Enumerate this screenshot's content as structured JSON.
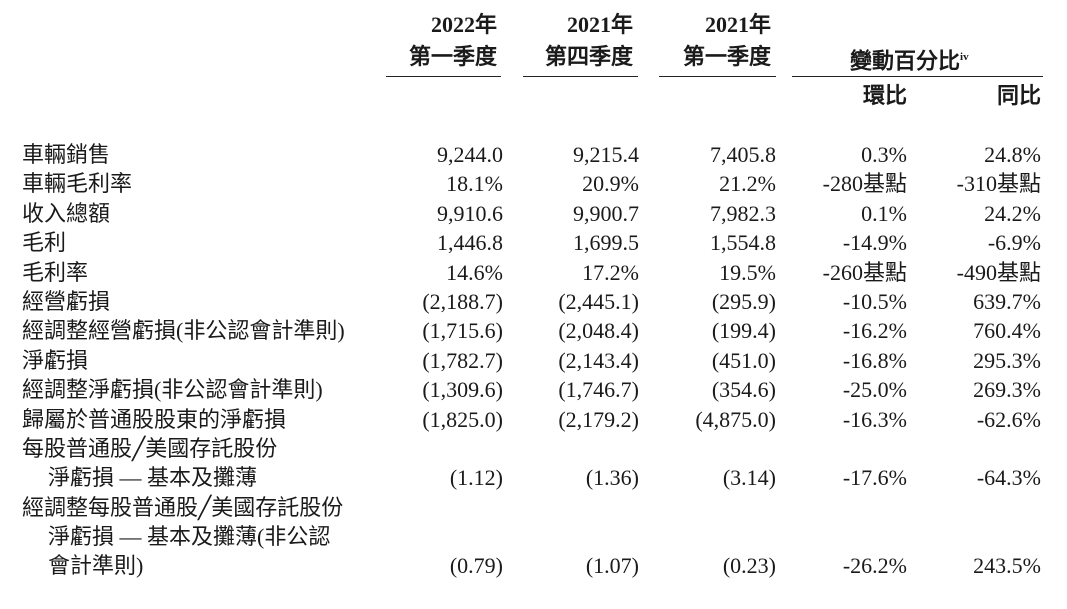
{
  "header": {
    "col1_year": "2022年",
    "col1_quarter": "第一季度",
    "col2_year": "2021年",
    "col2_quarter": "第四季度",
    "col3_year": "2021年",
    "col3_quarter": "第一季度",
    "change_title": "變動百分比",
    "change_sup": "iv",
    "qoq": "環比",
    "yoy": "同比"
  },
  "rows": [
    {
      "label": "車輛銷售",
      "v1": "9,244.0",
      "v2": "9,215.4",
      "v3": "7,405.8",
      "v4": "0.3%",
      "v5": "24.8%"
    },
    {
      "label": "車輛毛利率",
      "v1": "18.1%",
      "v2": "20.9%",
      "v3": "21.2%",
      "v4": "-280基點",
      "v5": "-310基點"
    },
    {
      "label": "收入總額",
      "v1": "9,910.6",
      "v2": "9,900.7",
      "v3": "7,982.3",
      "v4": "0.1%",
      "v5": "24.2%"
    },
    {
      "label": "毛利",
      "v1": "1,446.8",
      "v2": "1,699.5",
      "v3": "1,554.8",
      "v4": "-14.9%",
      "v5": "-6.9%"
    },
    {
      "label": "毛利率",
      "v1": "14.6%",
      "v2": "17.2%",
      "v3": "19.5%",
      "v4": "-260基點",
      "v5": "-490基點"
    },
    {
      "label": "經營虧損",
      "v1": "(2,188.7)",
      "v2": "(2,445.1)",
      "v3": "(295.9)",
      "v4": "-10.5%",
      "v5": "639.7%"
    },
    {
      "label": "經調整經營虧損(非公認會計準則)",
      "v1": "(1,715.6)",
      "v2": "(2,048.4)",
      "v3": "(199.4)",
      "v4": "-16.2%",
      "v5": "760.4%"
    },
    {
      "label": "淨虧損",
      "v1": "(1,782.7)",
      "v2": "(2,143.4)",
      "v3": "(451.0)",
      "v4": "-16.8%",
      "v5": "295.3%"
    },
    {
      "label": "經調整淨虧損(非公認會計準則)",
      "v1": "(1,309.6)",
      "v2": "(1,746.7)",
      "v3": "(354.6)",
      "v4": "-25.0%",
      "v5": "269.3%"
    },
    {
      "label": "歸屬於普通股股東的淨虧損",
      "v1": "(1,825.0)",
      "v2": "(2,179.2)",
      "v3": "(4,875.0)",
      "v4": "-16.3%",
      "v5": "-62.6%"
    },
    {
      "label": "每股普通股╱美國存託股份",
      "v1": "",
      "v2": "",
      "v3": "",
      "v4": "",
      "v5": ""
    },
    {
      "label": "淨虧損 — 基本及攤薄",
      "indent": true,
      "v1": "(1.12)",
      "v2": "(1.36)",
      "v3": "(3.14)",
      "v4": "-17.6%",
      "v5": "-64.3%"
    },
    {
      "label": "經調整每股普通股╱美國存託股份",
      "v1": "",
      "v2": "",
      "v3": "",
      "v4": "",
      "v5": ""
    },
    {
      "label": "淨虧損 — 基本及攤薄(非公認",
      "indent": true,
      "v1": "",
      "v2": "",
      "v3": "",
      "v4": "",
      "v5": ""
    },
    {
      "label": "會計準則)",
      "indent": true,
      "v1": "(0.79)",
      "v2": "(1.07)",
      "v3": "(0.23)",
      "v4": "-26.2%",
      "v5": "243.5%"
    }
  ]
}
